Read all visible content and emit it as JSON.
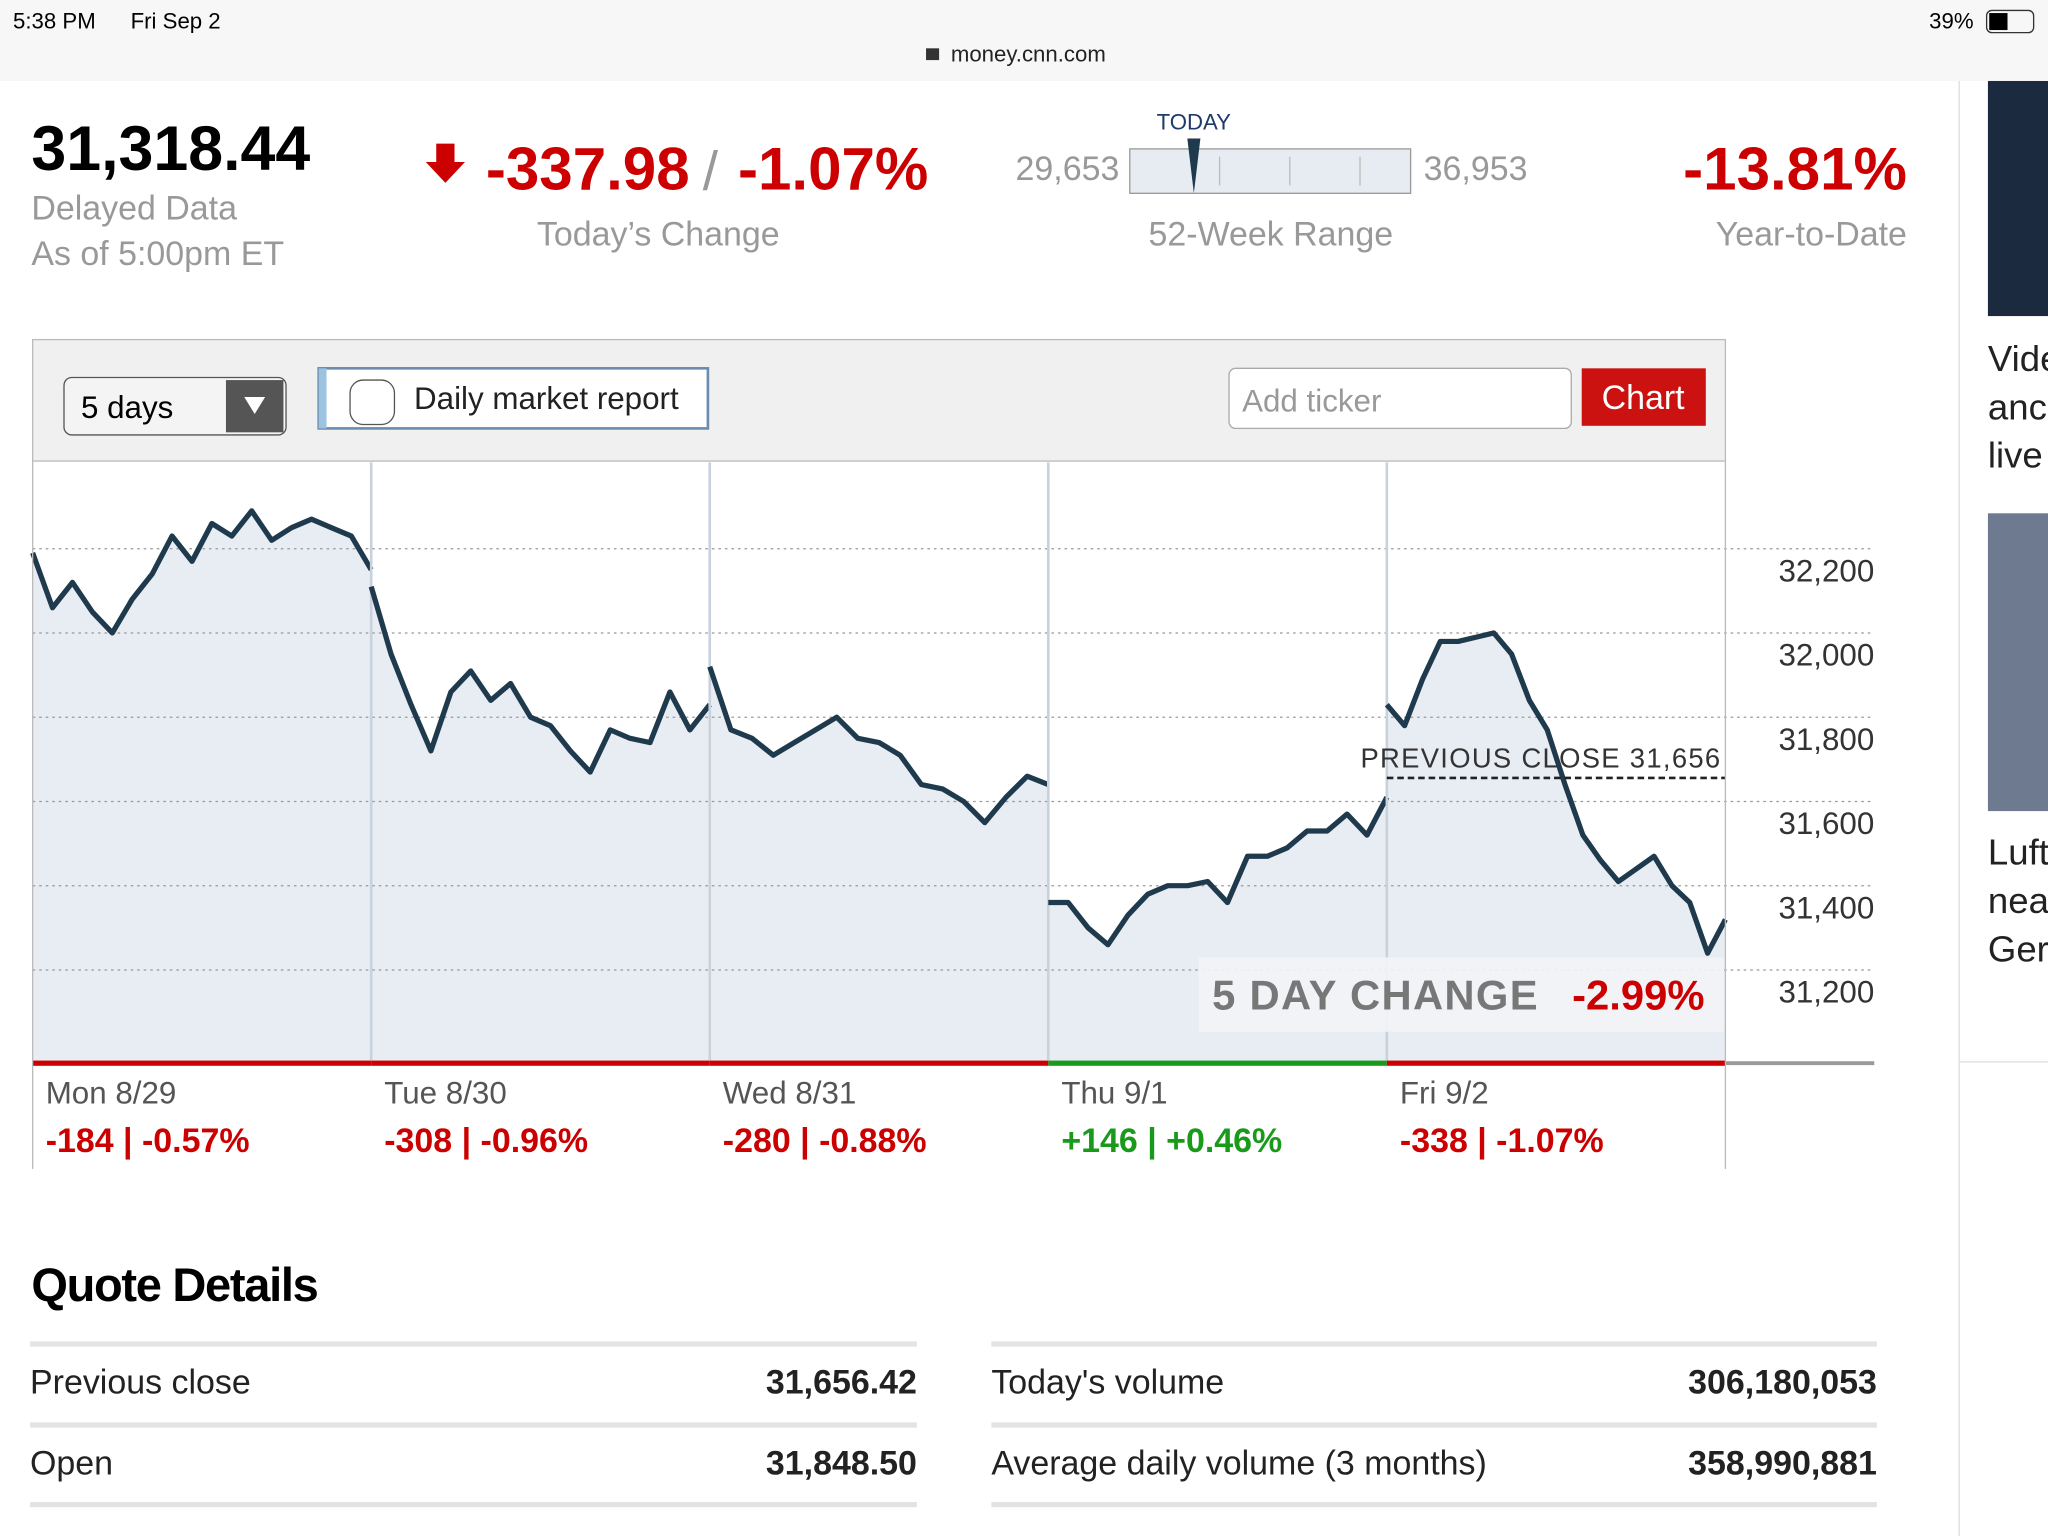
{
  "status_bar": {
    "time": "5:38 PM",
    "date": "Fri Sep 2",
    "battery": "39%"
  },
  "url": "money.cnn.com",
  "quote": {
    "price": "31,318.44",
    "delayed": "Delayed Data",
    "as_of": "As of 5:00pm ET",
    "change": "-337.98",
    "separator": "/",
    "change_pct": "-1.07%",
    "change_label": "Today’s Change",
    "range": {
      "today_label": "TODAY",
      "today": 31318.44,
      "low": {
        "value": 29653,
        "label": "29,653"
      },
      "high": {
        "value": 36953,
        "label": "36,953"
      },
      "label": "52-Week Range"
    },
    "ytd": "-13.81%",
    "ytd_label": "Year-to-Date"
  },
  "controls": {
    "period": "5 days",
    "report": "Daily market report",
    "ticker_placeholder": "Add ticker",
    "button": "Chart"
  },
  "chart_data": {
    "type": "line",
    "color": "#1f3a4d",
    "ylim": [
      30985,
      32405
    ],
    "yticks": [
      {
        "value": 31200,
        "label": "31,200"
      },
      {
        "value": 31400,
        "label": "31,400"
      },
      {
        "value": 31600,
        "label": "31,600"
      },
      {
        "value": 31800,
        "label": "31,800"
      },
      {
        "value": 32000,
        "label": "32,000"
      },
      {
        "value": 32200,
        "label": "32,200"
      }
    ],
    "grid": true,
    "days": [
      {
        "label": "Mon 8/29",
        "change": "-184 | -0.57%",
        "color": "#cc0000",
        "values": [
          32190,
          32060,
          32120,
          32050,
          32000,
          32080,
          32140,
          32230,
          32170,
          32260,
          32230,
          32290,
          32220,
          32250,
          32270,
          32250,
          32230,
          32150
        ]
      },
      {
        "label": "Tue 8/30",
        "change": "-308 | -0.96%",
        "color": "#cc0000",
        "values": [
          32110,
          31950,
          31830,
          31720,
          31860,
          31910,
          31840,
          31880,
          31800,
          31780,
          31720,
          31670,
          31770,
          31750,
          31740,
          31860,
          31770,
          31830
        ]
      },
      {
        "label": "Wed 8/31",
        "change": "-280 | -0.88%",
        "color": "#cc0000",
        "values": [
          31920,
          31770,
          31750,
          31710,
          31740,
          31770,
          31800,
          31750,
          31740,
          31710,
          31640,
          31630,
          31600,
          31550,
          31610,
          31660,
          31640
        ]
      },
      {
        "label": "Thu 9/1",
        "change": "+146 | +0.46%",
        "color": "#1a9a1a",
        "values": [
          31360,
          31360,
          31300,
          31260,
          31330,
          31380,
          31400,
          31400,
          31410,
          31360,
          31470,
          31470,
          31490,
          31530,
          31530,
          31570,
          31520,
          31610
        ]
      },
      {
        "label": "Fri 9/2",
        "change": "-338 | -1.07%",
        "color": "#cc0000",
        "values": [
          31830,
          31780,
          31890,
          31980,
          31980,
          31990,
          32000,
          31950,
          31840,
          31770,
          31640,
          31520,
          31460,
          31410,
          31440,
          31470,
          31400,
          31360,
          31240,
          31320
        ]
      }
    ],
    "previous_close": {
      "label": "PREVIOUS CLOSE 31,656",
      "value": 31656
    },
    "five_day": {
      "label": "5 DAY CHANGE",
      "value": "-2.99%"
    }
  },
  "quote_details": {
    "title": "Quote Details",
    "left": [
      [
        "Previous close",
        "31,656.42"
      ],
      [
        "Open",
        "31,848.50"
      ]
    ],
    "right": [
      [
        "Today's volume",
        "306,180,053"
      ],
      [
        "Average daily volume (3 months)",
        "358,990,881"
      ]
    ]
  },
  "sidebar": {
    "story1": [
      "Vide",
      "anc",
      "live"
    ],
    "story2": [
      "Luft",
      "nea",
      "Ger"
    ]
  }
}
